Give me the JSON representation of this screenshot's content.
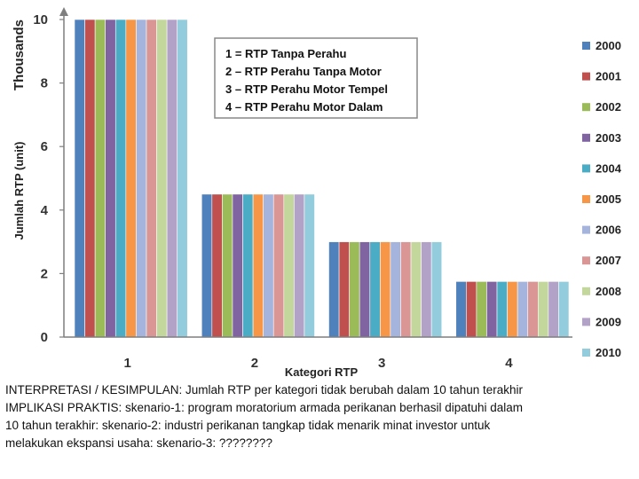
{
  "chart_data": {
    "type": "bar",
    "ylabel_unit": "Thousands",
    "ylabel": "Jumlah RTP (unit)",
    "xlabel": "Kategori RTP",
    "ylim": [
      0,
      10
    ],
    "yticks": [
      "0",
      "2",
      "4",
      "6",
      "8",
      "10"
    ],
    "categories": [
      "1",
      "2",
      "3",
      "4"
    ],
    "legend_position": "right",
    "series": [
      {
        "name": "2000",
        "color": "#4f81bd",
        "values": [
          10.0,
          4.5,
          3.0,
          1.75
        ]
      },
      {
        "name": "2001",
        "color": "#c0504d",
        "values": [
          10.0,
          4.5,
          3.0,
          1.75
        ]
      },
      {
        "name": "2002",
        "color": "#9bbb59",
        "values": [
          10.0,
          4.5,
          3.0,
          1.75
        ]
      },
      {
        "name": "2003",
        "color": "#8064a2",
        "values": [
          10.0,
          4.5,
          3.0,
          1.75
        ]
      },
      {
        "name": "2004",
        "color": "#4bacc6",
        "values": [
          10.0,
          4.5,
          3.0,
          1.75
        ]
      },
      {
        "name": "2005",
        "color": "#f79646",
        "values": [
          10.0,
          4.5,
          3.0,
          1.75
        ]
      },
      {
        "name": "2006",
        "color": "#a5b4dc",
        "values": [
          10.0,
          4.5,
          3.0,
          1.75
        ]
      },
      {
        "name": "2007",
        "color": "#d99694",
        "values": [
          10.0,
          4.5,
          3.0,
          1.75
        ]
      },
      {
        "name": "2008",
        "color": "#c3d69b",
        "values": [
          10.0,
          4.5,
          3.0,
          1.75
        ]
      },
      {
        "name": "2009",
        "color": "#b3a2c7",
        "values": [
          10.0,
          4.5,
          3.0,
          1.75
        ]
      },
      {
        "name": "2010",
        "color": "#93cddd",
        "values": [
          10.0,
          4.5,
          3.0,
          1.75
        ]
      }
    ],
    "annotation_lines": [
      "1 = RTP Tanpa Perahu",
      "2 – RTP Perahu Tanpa Motor",
      "3 – RTP Perahu Motor Tempel",
      "4 – RTP Perahu Motor Dalam"
    ]
  },
  "caption": {
    "line1": "INTERPRETASI / KESIMPULAN: Jumlah RTP per kategori tidak berubah dalam 10 tahun terakhir",
    "line2": "IMPLIKASI PRAKTIS: skenario-1: program moratorium armada perikanan berhasil dipatuhi dalam",
    "line3": "10 tahun terakhir: skenario-2: industri perikanan tangkap tidak menarik minat investor untuk",
    "line4": "melakukan ekspansi usaha: skenario-3: ????????"
  }
}
